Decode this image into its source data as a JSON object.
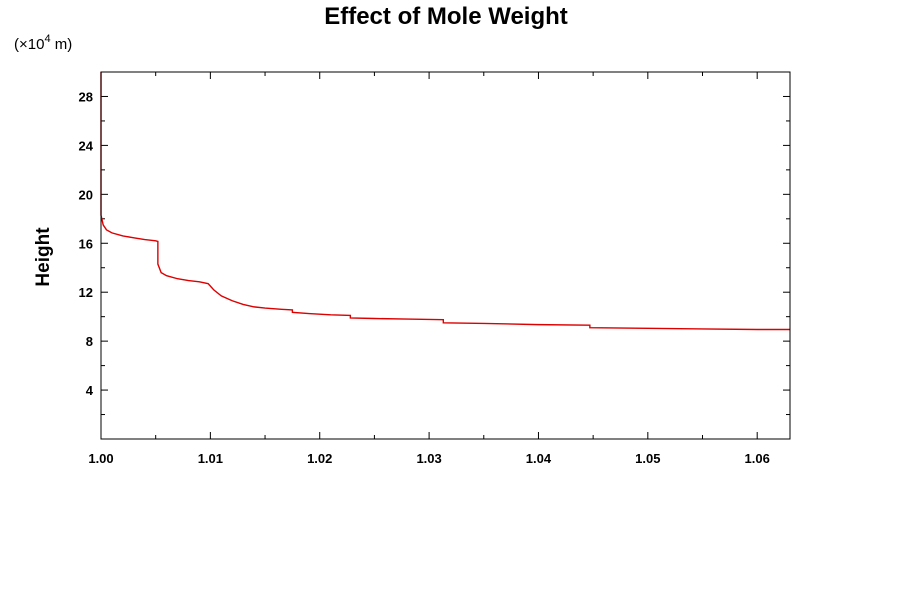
{
  "chart_data": {
    "type": "line",
    "title": "Effect of Mole Weight",
    "ylabel": "Height",
    "xlabel": "",
    "scale_note": {
      "prefix": "(×10",
      "exponent": "4",
      "suffix": " m)"
    },
    "xlim": [
      1.0,
      1.063
    ],
    "ylim": [
      0,
      30
    ],
    "x_ticks": [
      "1.00",
      "1.01",
      "1.02",
      "1.03",
      "1.04",
      "1.05",
      "1.06"
    ],
    "y_ticks": [
      "4",
      "8",
      "12",
      "16",
      "20",
      "24",
      "28"
    ],
    "grid": false,
    "series": [
      {
        "color": "#dd0000",
        "points": [
          [
            1.0,
            30.0
          ],
          [
            1.0,
            18.3
          ],
          [
            1.0002,
            17.5
          ],
          [
            1.0005,
            17.1
          ],
          [
            1.001,
            16.85
          ],
          [
            1.002,
            16.6
          ],
          [
            1.003,
            16.45
          ],
          [
            1.004,
            16.3
          ],
          [
            1.005,
            16.2
          ],
          [
            1.0052,
            16.15
          ],
          [
            1.0052,
            14.3
          ],
          [
            1.0055,
            13.6
          ],
          [
            1.006,
            13.35
          ],
          [
            1.007,
            13.1
          ],
          [
            1.008,
            12.95
          ],
          [
            1.009,
            12.85
          ],
          [
            1.0098,
            12.7
          ],
          [
            1.0103,
            12.2
          ],
          [
            1.011,
            11.7
          ],
          [
            1.012,
            11.3
          ],
          [
            1.013,
            11.0
          ],
          [
            1.014,
            10.8
          ],
          [
            1.015,
            10.7
          ],
          [
            1.0165,
            10.6
          ],
          [
            1.0175,
            10.55
          ],
          [
            1.0175,
            10.35
          ],
          [
            1.019,
            10.25
          ],
          [
            1.021,
            10.15
          ],
          [
            1.0228,
            10.1
          ],
          [
            1.0228,
            9.9
          ],
          [
            1.025,
            9.85
          ],
          [
            1.028,
            9.8
          ],
          [
            1.0313,
            9.75
          ],
          [
            1.0313,
            9.5
          ],
          [
            1.035,
            9.45
          ],
          [
            1.04,
            9.35
          ],
          [
            1.0447,
            9.3
          ],
          [
            1.0447,
            9.1
          ],
          [
            1.05,
            9.05
          ],
          [
            1.055,
            9.0
          ],
          [
            1.06,
            8.95
          ],
          [
            1.063,
            8.95
          ]
        ]
      }
    ]
  }
}
